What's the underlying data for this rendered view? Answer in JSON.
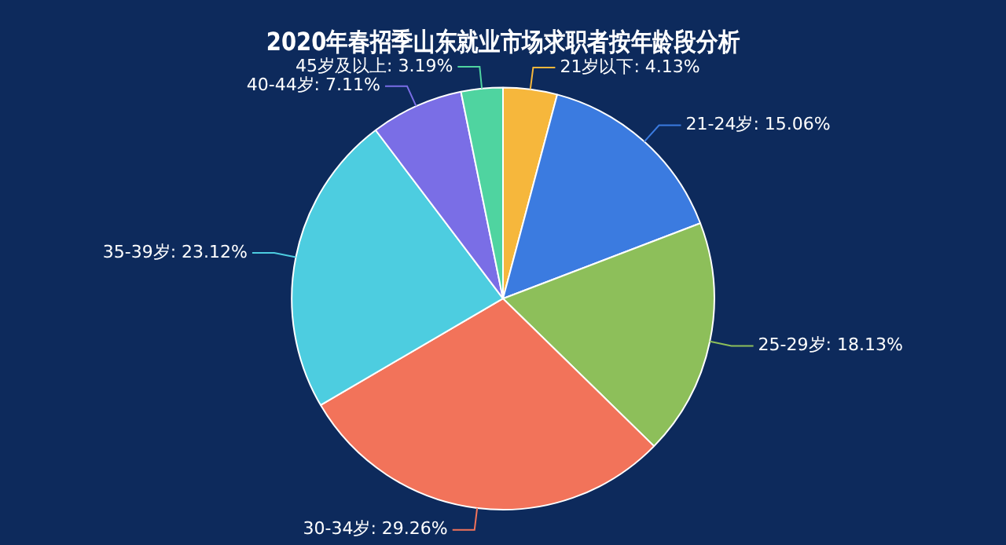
{
  "chart_data": {
    "type": "pie",
    "title": "2020年春招季山东就业市场求职者按年龄段分析",
    "categories": [
      "21岁以下",
      "21-24岁",
      "25-29岁",
      "30-34岁",
      "35-39岁",
      "40-44岁",
      "45岁及以上"
    ],
    "values": [
      4.13,
      15.06,
      18.13,
      29.26,
      23.12,
      7.11,
      3.19
    ],
    "value_labels": [
      "4.13%",
      "15.06%",
      "18.13%",
      "29.26%",
      "23.12%",
      "7.11%",
      "3.19%"
    ],
    "colors": [
      "#f6b73c",
      "#3b7be0",
      "#8dbf5a",
      "#f2735a",
      "#4dcde0",
      "#7a6ee6",
      "#4fd4a0"
    ],
    "legend": false
  }
}
